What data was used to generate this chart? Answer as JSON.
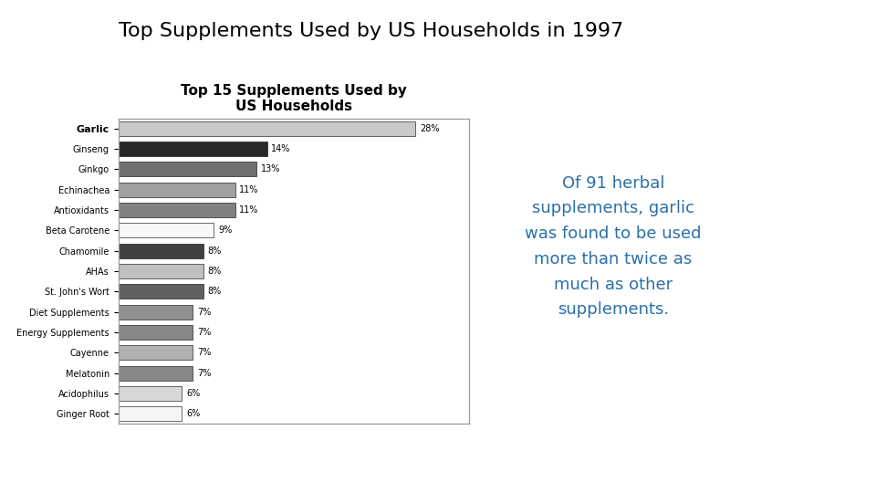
{
  "title": "Top Supplements Used by US Households in 1997",
  "chart_title_line1": "Top 15 Supplements Used by",
  "chart_title_line2": "US Households",
  "categories": [
    "Ginger Root",
    "Acidophilus",
    "Melatonin",
    "Cayenne",
    "Energy Supplements",
    "Diet Supplements",
    "St. John's Wort",
    "AHAs",
    "Chamomile",
    "Beta Carotene",
    "Antioxidants",
    "Echinachea",
    "Ginkgo",
    "Ginseng",
    "Garlic"
  ],
  "values": [
    6,
    6,
    7,
    7,
    7,
    7,
    8,
    8,
    8,
    9,
    11,
    11,
    13,
    14,
    28
  ],
  "bar_colors": [
    "#f5f5f5",
    "#d8d8d8",
    "#888888",
    "#b0b0b0",
    "#888888",
    "#909090",
    "#606060",
    "#c0c0c0",
    "#404040",
    "#f8f8f8",
    "#808080",
    "#a0a0a0",
    "#707070",
    "#282828",
    "#c8c8c8"
  ],
  "annotation_color": "#2a6fa8",
  "annotation_text": "Of 91 herbal\nsupplements, garlic\nwas found to be used\nmore than twice as\nmuch as other\nsupplements.",
  "bg_color": "#ffffff",
  "chart_bg": "#ffffff",
  "border_color": "#999999",
  "title_fontsize": 16,
  "chart_title_fontsize": 11,
  "annotation_fontsize": 13,
  "bar_label_fontsize": 7,
  "ytick_fontsize": 7
}
